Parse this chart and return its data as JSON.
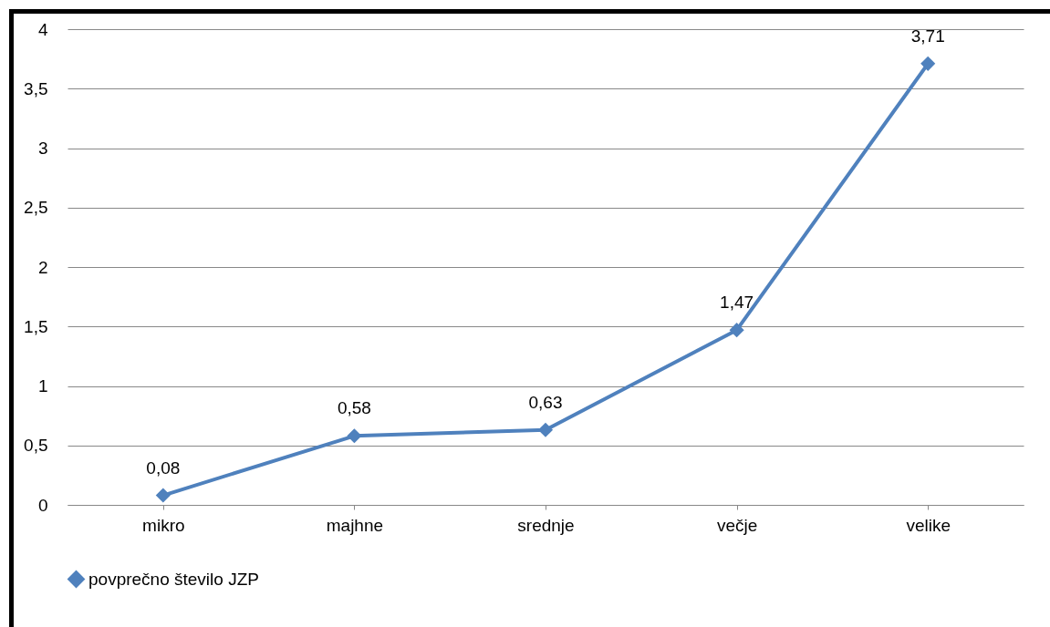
{
  "chart_data": {
    "type": "line",
    "categories": [
      "mikro",
      "majhne",
      "srednje",
      "večje",
      "velike"
    ],
    "series": [
      {
        "name": "povprečno število JZP",
        "color": "#4f81bd",
        "values": [
          0.08,
          0.58,
          0.63,
          1.47,
          3.71
        ],
        "value_labels": [
          "0,08",
          "0,58",
          "0,63",
          "1,47",
          "3,71"
        ]
      }
    ],
    "ylim": [
      0,
      4
    ],
    "yticks": [
      0,
      {
        "value": 0.5,
        "label": "0,5"
      },
      1,
      {
        "value": 1.5,
        "label": "1,5"
      },
      2,
      {
        "value": 2.5,
        "label": "2,5"
      },
      3,
      {
        "value": 3.5,
        "label": "3,5"
      },
      4
    ],
    "grid": "y",
    "legend": "bottom",
    "marker": "diamond",
    "line_style": "solid"
  }
}
